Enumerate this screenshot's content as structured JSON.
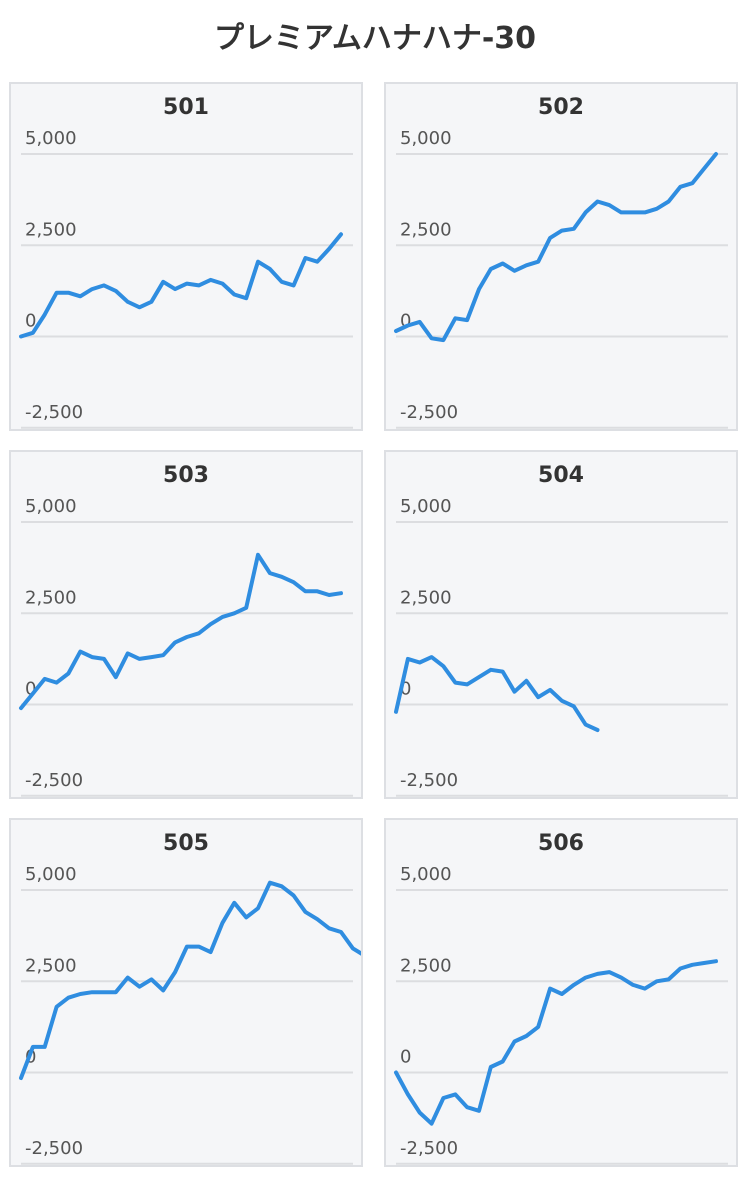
{
  "page": {
    "title": "プレミアムハナハナ-30"
  },
  "colors": {
    "line": "#2f8de0",
    "card_bg": "#f5f6f8",
    "border": "#dddfe3",
    "grid": "#dcdde0"
  },
  "chart_data": [
    {
      "type": "line",
      "title": "501",
      "ylim": [
        -5000,
        5000
      ],
      "yticks": [
        5000,
        2500,
        0,
        -2500
      ],
      "ytick_labels": [
        "5,000",
        "2,500",
        "0",
        "-2,500"
      ],
      "grid": true,
      "x": [
        0,
        1,
        2,
        3,
        4,
        5,
        6,
        7,
        8,
        9,
        10,
        11,
        12,
        13,
        14,
        15,
        16,
        17,
        18,
        19,
        20,
        21,
        22,
        23,
        24,
        25,
        26,
        27
      ],
      "series": [
        {
          "values": [
            0,
            100,
            600,
            1200,
            1200,
            1100,
            1300,
            1400,
            1250,
            950,
            800,
            950,
            1500,
            1300,
            1450,
            1400,
            1550,
            1450,
            1150,
            1050,
            2050,
            1850,
            1500,
            1400,
            2150,
            2050,
            2400,
            2800
          ]
        }
      ]
    },
    {
      "type": "line",
      "title": "502",
      "ylim": [
        -5000,
        5000
      ],
      "yticks": [
        5000,
        2500,
        0,
        -2500
      ],
      "ytick_labels": [
        "5,000",
        "2,500",
        "0",
        "-2,500"
      ],
      "grid": true,
      "x": [
        0,
        1,
        2,
        3,
        4,
        5,
        6,
        7,
        8,
        9,
        10,
        11,
        12,
        13,
        14,
        15,
        16,
        17,
        18,
        19,
        20,
        21,
        22,
        23,
        24,
        25,
        26,
        27
      ],
      "series": [
        {
          "values": [
            150,
            300,
            400,
            -50,
            -100,
            500,
            450,
            1300,
            1850,
            2000,
            1800,
            1950,
            2050,
            2700,
            2900,
            2950,
            3400,
            3700,
            3600,
            3400,
            3400,
            3400,
            3500,
            3700,
            4100,
            4200,
            4600,
            5000
          ]
        }
      ]
    },
    {
      "type": "line",
      "title": "503",
      "ylim": [
        -5000,
        5000
      ],
      "yticks": [
        5000,
        2500,
        0,
        -2500
      ],
      "ytick_labels": [
        "5,000",
        "2,500",
        "0",
        "-2,500"
      ],
      "grid": true,
      "x": [
        0,
        1,
        2,
        3,
        4,
        5,
        6,
        7,
        8,
        9,
        10,
        11,
        12,
        13,
        14,
        15,
        16,
        17,
        18,
        19,
        20,
        21,
        22,
        23,
        24,
        25,
        26,
        27
      ],
      "series": [
        {
          "values": [
            -100,
            300,
            700,
            600,
            850,
            1450,
            1300,
            1250,
            750,
            1400,
            1250,
            1300,
            1350,
            1700,
            1850,
            1950,
            2200,
            2400,
            2500,
            2650,
            4100,
            3600,
            3500,
            3350,
            3100,
            3100,
            3000,
            3050
          ]
        }
      ]
    },
    {
      "type": "line",
      "title": "504",
      "ylim": [
        -5000,
        5000
      ],
      "yticks": [
        5000,
        2500,
        0,
        -2500
      ],
      "ytick_labels": [
        "5,000",
        "2,500",
        "0",
        "-2,500"
      ],
      "grid": true,
      "x": [
        0,
        1,
        2,
        3,
        4,
        5,
        6,
        7,
        8,
        9,
        10,
        11,
        12,
        13,
        14,
        15,
        16,
        17
      ],
      "series": [
        {
          "values": [
            -200,
            1250,
            1150,
            1300,
            1050,
            600,
            550,
            750,
            950,
            900,
            350,
            650,
            200,
            400,
            100,
            -50,
            -550,
            -700
          ]
        }
      ]
    },
    {
      "type": "line",
      "title": "505",
      "ylim": [
        -5000,
        5000
      ],
      "yticks": [
        5000,
        2500,
        0,
        -2500
      ],
      "ytick_labels": [
        "5,000",
        "2,500",
        "0",
        "-2,500"
      ],
      "grid": true,
      "x": [
        0,
        1,
        2,
        3,
        4,
        5,
        6,
        7,
        8,
        9,
        10,
        11,
        12,
        13,
        14,
        15,
        16,
        17,
        18,
        19,
        20,
        21,
        22,
        23,
        24,
        25,
        26,
        27,
        28,
        29
      ],
      "series": [
        {
          "values": [
            -150,
            700,
            700,
            1800,
            2050,
            2150,
            2200,
            2200,
            2200,
            2600,
            2350,
            2550,
            2250,
            2750,
            3450,
            3450,
            3300,
            4100,
            4650,
            4250,
            4500,
            5200,
            5100,
            4850,
            4400,
            4200,
            3950,
            3850,
            3400,
            3200
          ]
        }
      ]
    },
    {
      "type": "line",
      "title": "506",
      "ylim": [
        -5000,
        5000
      ],
      "yticks": [
        5000,
        2500,
        0,
        -2500
      ],
      "ytick_labels": [
        "5,000",
        "2,500",
        "0",
        "-2,500"
      ],
      "grid": true,
      "x": [
        0,
        1,
        2,
        3,
        4,
        5,
        6,
        7,
        8,
        9,
        10,
        11,
        12,
        13,
        14,
        15,
        16,
        17,
        18,
        19,
        20,
        21,
        22,
        23,
        24,
        25,
        26,
        27
      ],
      "series": [
        {
          "values": [
            0,
            -600,
            -1100,
            -1400,
            -700,
            -600,
            -950,
            -1050,
            150,
            300,
            850,
            1000,
            1250,
            2300,
            2150,
            2400,
            2600,
            2700,
            2750,
            2600,
            2400,
            2300,
            2500,
            2550,
            2850,
            2950,
            3000,
            3050
          ]
        }
      ]
    }
  ]
}
